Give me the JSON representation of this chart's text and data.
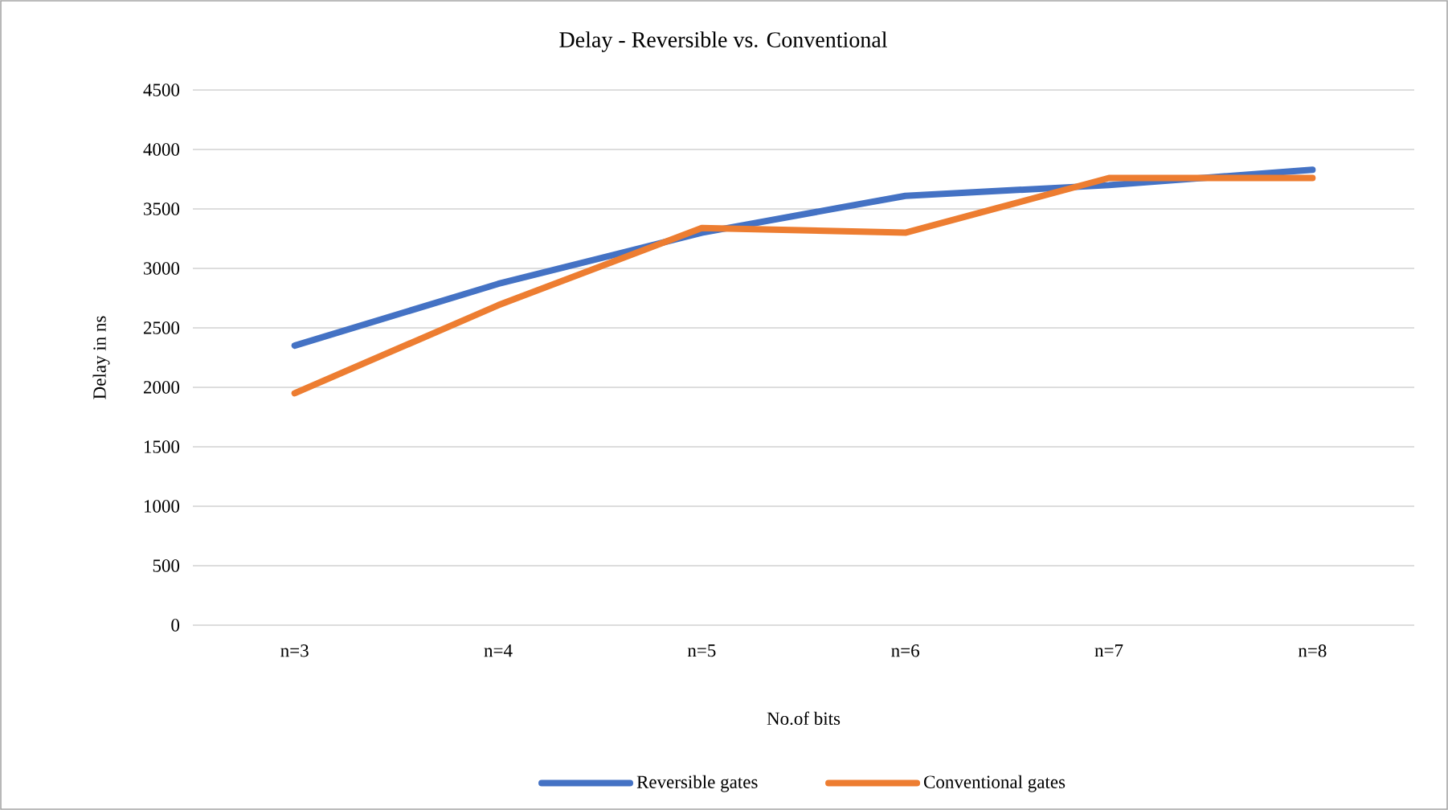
{
  "chart_data": {
    "type": "line",
    "title": "Delay - Reversible vs. Conventional",
    "xlabel": "No.of bits",
    "ylabel": "Delay in ns",
    "categories": [
      "n=3",
      "n=4",
      "n=5",
      "n=6",
      "n=7",
      "n=8"
    ],
    "series": [
      {
        "name": "Reversible gates",
        "color": "#4472c4",
        "values": [
          2350,
          2870,
          3300,
          3610,
          3700,
          3830
        ]
      },
      {
        "name": "Conventional gates",
        "color": "#ed7d31",
        "values": [
          1950,
          2690,
          3340,
          3300,
          3760,
          3760
        ]
      }
    ],
    "ylim": [
      0,
      4500
    ],
    "yticks": [
      0,
      500,
      1000,
      1500,
      2000,
      2500,
      3000,
      3500,
      4000,
      4500
    ],
    "grid": "y",
    "legend": "bottom",
    "marker": "none",
    "line_style": "solid"
  }
}
